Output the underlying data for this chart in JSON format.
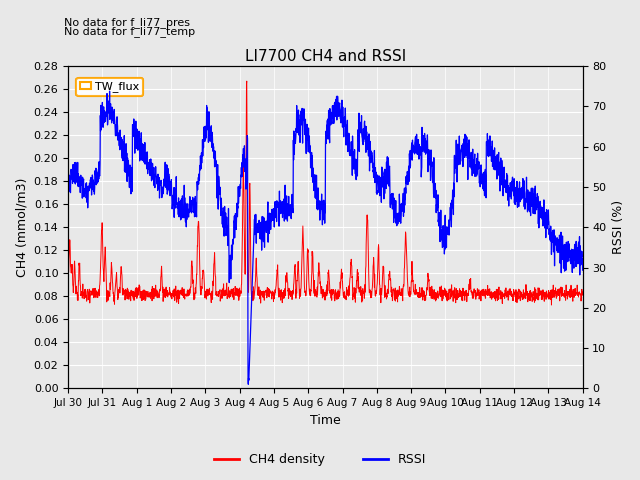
{
  "title": "LI7700 CH4 and RSSI",
  "xlabel": "Time",
  "ylabel_left": "CH4 (mmol/m3)",
  "ylabel_right": "RSSI (%)",
  "ylim_left": [
    0.0,
    0.28
  ],
  "ylim_right": [
    0,
    80
  ],
  "annotation1": "No data for f_li77_pres",
  "annotation2": "No data for f_li77_temp",
  "legend_box_label": "TW_flux",
  "legend_items": [
    "CH4 density",
    "RSSI"
  ],
  "legend_colors": [
    "red",
    "blue"
  ],
  "x_tick_labels": [
    "Jul 30",
    "Jul 31",
    "Aug 1",
    "Aug 2",
    "Aug 3",
    "Aug 4",
    "Aug 5",
    "Aug 6",
    "Aug 7",
    "Aug 8",
    "Aug 9",
    "Aug 10",
    "Aug 11",
    "Aug 12",
    "Aug 13",
    "Aug 14"
  ],
  "yticks_left": [
    0.0,
    0.02,
    0.04,
    0.06,
    0.08,
    0.1,
    0.12,
    0.14,
    0.16,
    0.18,
    0.2,
    0.22,
    0.24,
    0.26,
    0.28
  ],
  "yticks_right": [
    0,
    10,
    20,
    30,
    40,
    50,
    60,
    70,
    80
  ],
  "background_color": "#e8e8e8",
  "grid_color": "#ffffff",
  "figsize": [
    6.4,
    4.8
  ],
  "dpi": 100
}
